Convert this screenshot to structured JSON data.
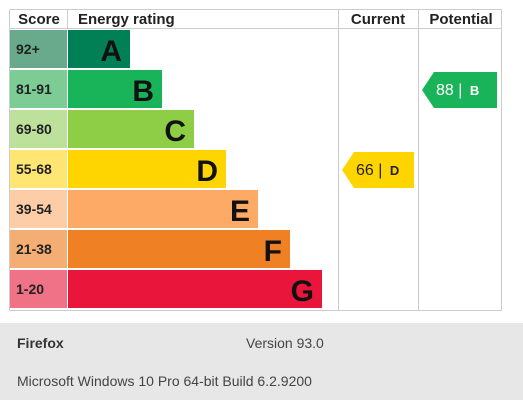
{
  "chart_data": {
    "type": "bar",
    "headers": {
      "score": "Score",
      "rating": "Energy rating",
      "current": "Current",
      "potential": "Potential"
    },
    "bands": [
      {
        "score": "92+",
        "letter": "A",
        "color": "#008054",
        "score_bg": "#6aaa8c"
      },
      {
        "score": "81-91",
        "letter": "B",
        "color": "#19b459",
        "score_bg": "#7dcc96"
      },
      {
        "score": "69-80",
        "letter": "C",
        "color": "#8dce46",
        "score_bg": "#bde19a"
      },
      {
        "score": "55-68",
        "letter": "D",
        "color": "#ffd500",
        "score_bg": "#ffe574"
      },
      {
        "score": "39-54",
        "letter": "E",
        "color": "#fcaa65",
        "score_bg": "#fccda6"
      },
      {
        "score": "21-38",
        "letter": "F",
        "color": "#ef8023",
        "score_bg": "#f4ae74"
      },
      {
        "score": "1-20",
        "letter": "G",
        "color": "#e9153b",
        "score_bg": "#f07286"
      }
    ],
    "current": {
      "value": "66",
      "band": "D",
      "color": "#ffd500"
    },
    "potential": {
      "value": "88",
      "band": "B",
      "color": "#19b459"
    }
  },
  "footer": {
    "app": "Firefox",
    "version": "Version 93.0",
    "os": "Microsoft Windows 10 Pro 64-bit Build 6.2.9200"
  }
}
